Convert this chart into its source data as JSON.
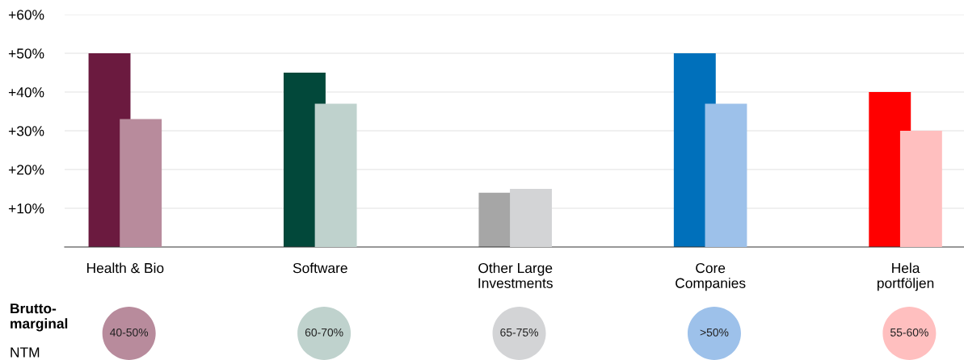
{
  "chart_data": {
    "type": "bar",
    "categories": [
      "Health & Bio",
      "Software",
      "Other Large\nInvestments",
      "Core\nCompanies",
      "Hela\nportföljen"
    ],
    "series": [
      {
        "colors": [
          "#6b1a3f",
          "#02483a",
          "#a6a6a6",
          "#0070bb",
          "#ff0000"
        ],
        "values": [
          50,
          45,
          14,
          50,
          40
        ]
      },
      {
        "colors": [
          "#b88b9c",
          "#bfd2cd",
          "#d3d4d6",
          "#9dc1ea",
          "#ffbfbf"
        ],
        "values": [
          33,
          37,
          15,
          37,
          30
        ]
      }
    ],
    "ylim": [
      0,
      60
    ],
    "yticks": [
      {
        "value": 10,
        "label": "+10%"
      },
      {
        "value": 20,
        "label": "+20%"
      },
      {
        "value": 30,
        "label": "+30%"
      },
      {
        "value": 40,
        "label": "+40%"
      },
      {
        "value": 50,
        "label": "+50%"
      },
      {
        "value": 60,
        "label": "+60%"
      }
    ],
    "grid": "y",
    "annotations": [
      "Brutto-\nmarginal",
      "NTM",
      "40-50%",
      "60-70%",
      "65-75%",
      ">50%",
      "55-60%"
    ]
  }
}
